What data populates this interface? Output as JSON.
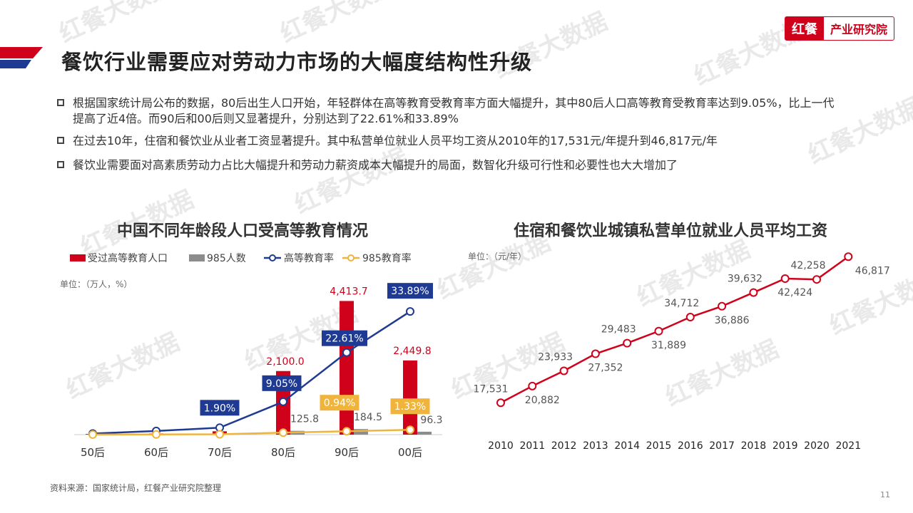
{
  "header": {
    "title": "餐饮行业需要应对劳动力市场的大幅度结构性升级",
    "logo_left": "红餐",
    "logo_right": "产业研究院"
  },
  "watermark": "红餐大数据",
  "bullets": [
    "根据国家统计局公布的数据，80后出生人口开始，年轻群体在高等教育受教育率方面大幅提升，其中80后人口高等教育受教育率达到9.05%，比上一代提高了近4倍。而90后和00后则又显著提升，分别达到了22.61%和33.89%",
    "在过去10年，住宿和餐饮业从业者工资显著提升。其中私营单位就业人员平均工资从2010年的17,531元/年提升到46,817元/年",
    "餐饮业需要面对高素质劳动力占比大幅提升和劳动力薪资成本大幅提升的局面，数智化升级可行性和必要性也大大增加了"
  ],
  "footer": {
    "source": "资料来源：国家统计局，红餐产业研究院整理",
    "page_number": "11"
  },
  "colors": {
    "red": "#d0021b",
    "gray": "#8c8c8c",
    "navy": "#1f3a93",
    "gold": "#f0b43c"
  },
  "chart_data": [
    {
      "type": "bar",
      "title": "中国不同年龄段人口受高等教育情况",
      "unit": "单位：（万人，%）",
      "categories": [
        "50后",
        "60后",
        "70后",
        "80后",
        "90后",
        "00后"
      ],
      "series": [
        {
          "name": "受过高等教育人口",
          "kind": "bar",
          "axis": "left",
          "values": [
            20,
            40,
            110,
            2100.0,
            4413.7,
            2449.8
          ],
          "labels": [
            "",
            "",
            "",
            "2,100.0",
            "4,413.7",
            "2,449.8"
          ]
        },
        {
          "name": "985人数",
          "kind": "bar",
          "axis": "left",
          "values": [
            2,
            5,
            10,
            125.8,
            184.5,
            96.3
          ],
          "labels": [
            "",
            "",
            "",
            "125.8",
            "184.5",
            "96.3"
          ]
        },
        {
          "name": "高等教育率",
          "kind": "line",
          "axis": "right",
          "values": [
            0.3,
            1.0,
            1.9,
            9.05,
            22.61,
            33.89
          ],
          "labels": [
            "",
            "",
            "1.90%",
            "9.05%",
            "22.61%",
            "33.89%"
          ]
        },
        {
          "name": "985教育率",
          "kind": "line",
          "axis": "right",
          "values": [
            0.02,
            0.05,
            0.1,
            0.54,
            0.94,
            1.33
          ],
          "labels": [
            "",
            "",
            "",
            "",
            "0.94%",
            "1.33%"
          ]
        }
      ],
      "ylim_left": [
        0,
        4800
      ],
      "ylim_right": [
        0,
        40
      ],
      "legend": "top"
    },
    {
      "type": "line",
      "title": "住宿和餐饮业城镇私营单位就业人员平均工资",
      "unit": "单位：（元/年）",
      "x": [
        "2010",
        "2011",
        "2012",
        "2013",
        "2014",
        "2015",
        "2016",
        "2017",
        "2018",
        "2019",
        "2020",
        "2021"
      ],
      "series": [
        {
          "name": "平均工资",
          "values": [
            17531,
            20882,
            23933,
            27352,
            29483,
            31889,
            34712,
            36886,
            39632,
            42424,
            42258,
            46817
          ],
          "labels": [
            "17,531",
            "20,882",
            "23,933",
            "27,352",
            "29,483",
            "31,889",
            "34,712",
            "36,886",
            "39,632",
            "42,424",
            "42,258",
            "46,817"
          ]
        }
      ],
      "ylim": [
        10000,
        50000
      ],
      "grid": false
    }
  ]
}
